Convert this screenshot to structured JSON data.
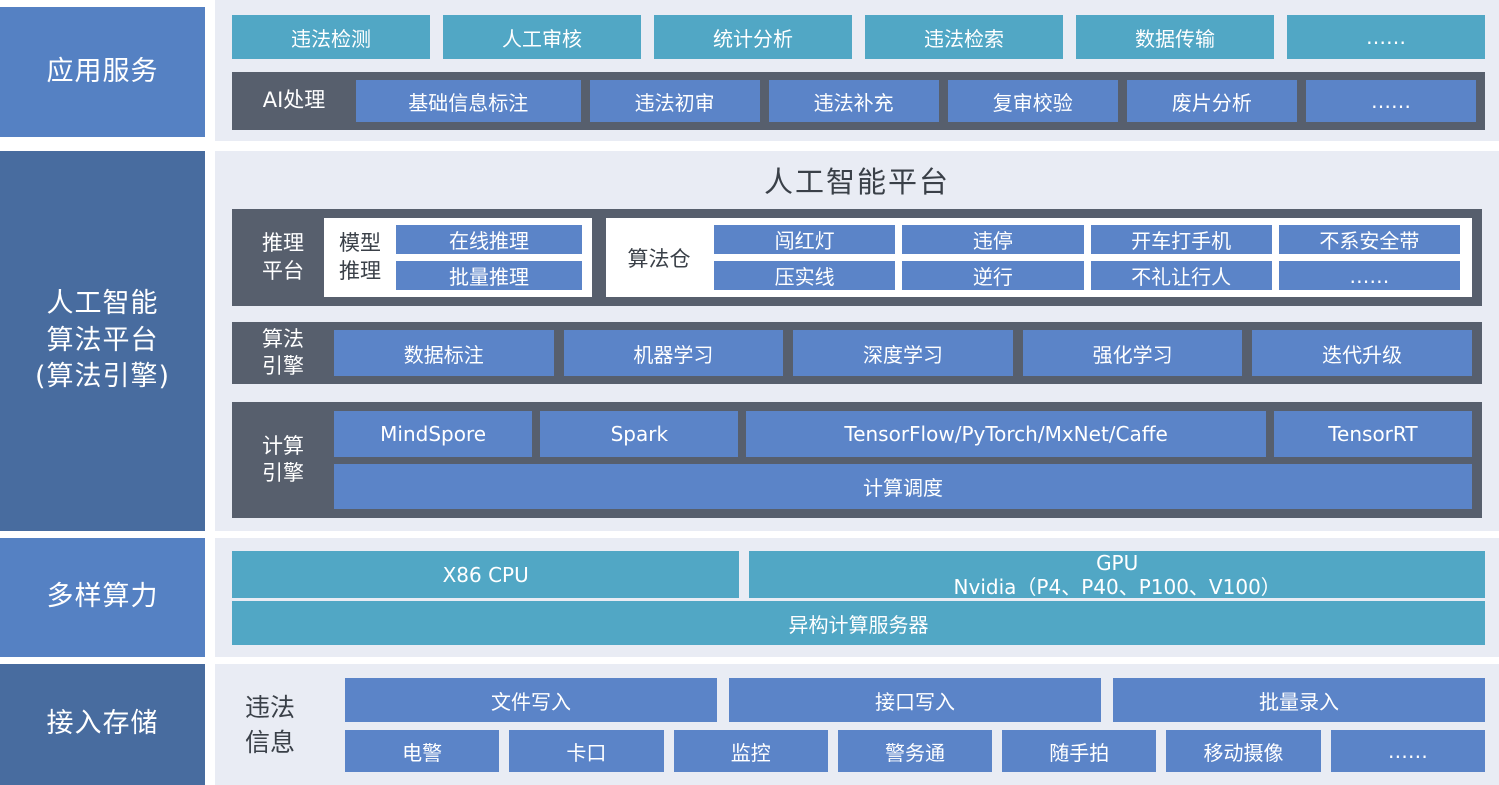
{
  "sidebar": {
    "items": [
      {
        "label": "应用服务"
      },
      {
        "lines": [
          "人工智能",
          "算法平台",
          "(算法引擎)"
        ]
      },
      {
        "label": "多样算力"
      },
      {
        "label": "接入存储"
      }
    ]
  },
  "app_services": {
    "top_buttons": [
      "违法检测",
      "人工审核",
      "统计分析",
      "违法检索",
      "数据传输",
      "……"
    ],
    "ai_bar": {
      "label": "AI处理",
      "buttons": [
        "基础信息标注",
        "违法初审",
        "违法补充",
        "复审校验",
        "废片分析",
        "……"
      ]
    }
  },
  "ai_platform": {
    "title": "人工智能平台",
    "inference": {
      "label_lines": [
        "推理",
        "平台"
      ],
      "model_inference": {
        "label_lines": [
          "模型",
          "推理"
        ],
        "buttons": [
          "在线推理",
          "批量推理"
        ]
      },
      "algorithm_store": {
        "label": "算法仓",
        "buttons": [
          "闯红灯",
          "违停",
          "开车打手机",
          "不系安全带",
          "压实线",
          "逆行",
          "不礼让行人",
          "……"
        ]
      }
    },
    "algorithm_engine": {
      "label_lines": [
        "算法",
        "引擎"
      ],
      "buttons": [
        "数据标注",
        "机器学习",
        "深度学习",
        "强化学习",
        "迭代升级"
      ]
    },
    "compute_engine": {
      "label_lines": [
        "计算",
        "引擎"
      ],
      "buttons": [
        "MindSpore",
        "Spark",
        "TensorFlow/PyTorch/MxNet/Caffe",
        "TensorRT"
      ],
      "scheduler": "计算调度"
    }
  },
  "computing_power": {
    "cpu": "X86 CPU",
    "gpu_lines": [
      "GPU",
      "Nvidia（P4、P40、P100、V100）"
    ],
    "server": "异构计算服务器"
  },
  "storage": {
    "label_lines": [
      "违法",
      "信息"
    ],
    "write_buttons": [
      "文件写入",
      "接口写入",
      "批量录入"
    ],
    "source_buttons": [
      "电警",
      "卡口",
      "监控",
      "警务通",
      "随手拍",
      "移动摄像",
      "……"
    ]
  },
  "colors": {
    "teal_block": "#51a7c5",
    "blue_block": "#5b84c8",
    "dark_bar": "#575f6d",
    "panel_bg": "#e9ecf4",
    "sidebar_light": "#5581c3",
    "sidebar_dark": "#486c9f",
    "ink_text": "#3a4048"
  }
}
